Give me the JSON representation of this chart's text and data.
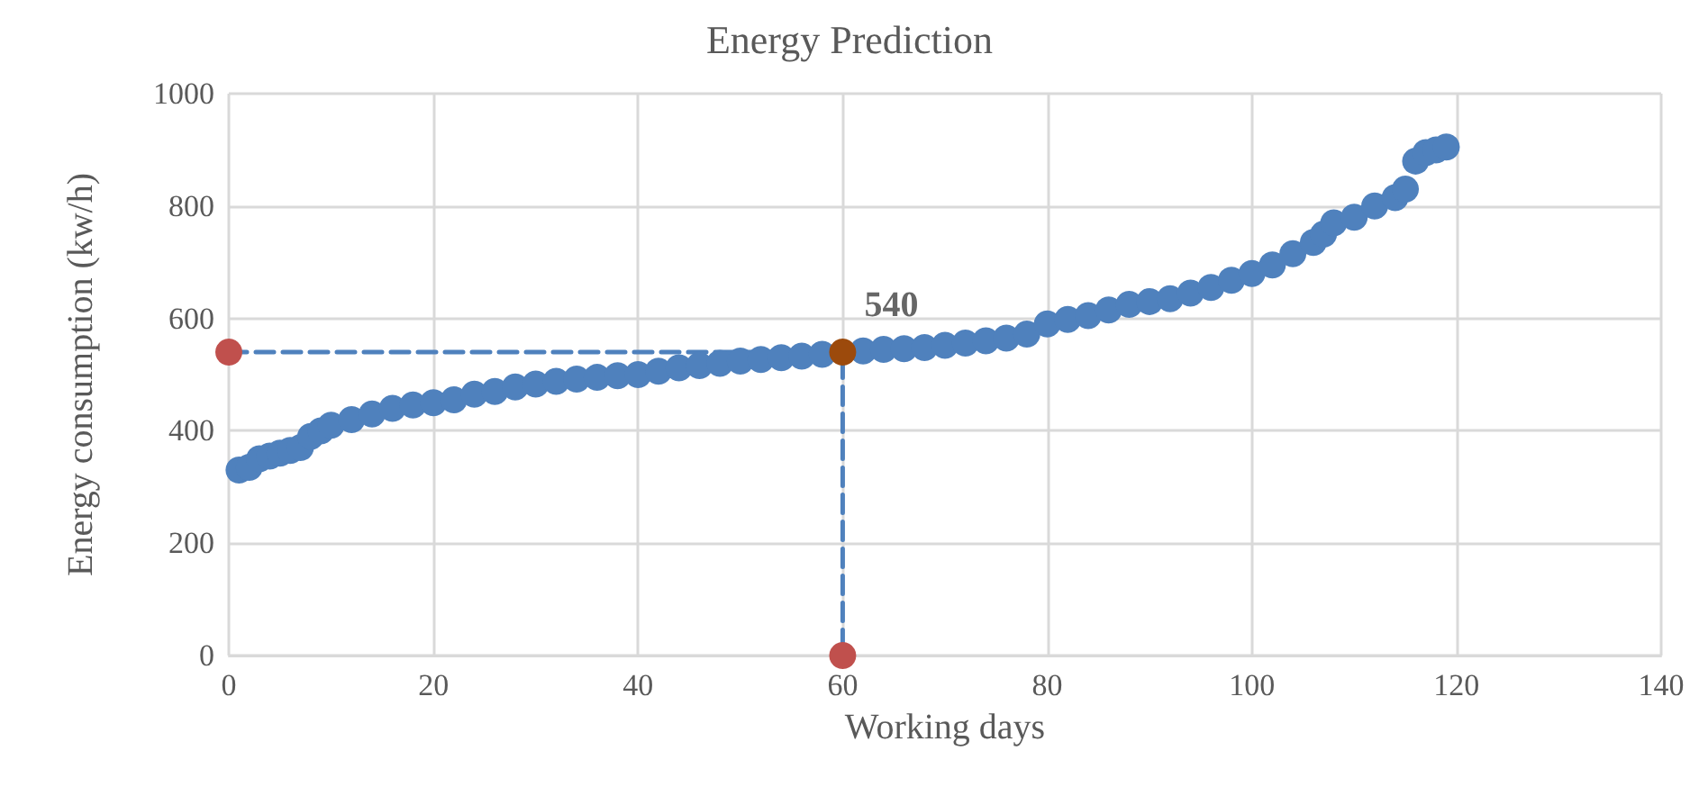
{
  "chart_data": {
    "type": "scatter",
    "title": "Energy Prediction",
    "xlabel": "Working days",
    "ylabel": "Energy consumption (kw/h)",
    "xlim": [
      0,
      140
    ],
    "xticks": [
      0,
      20,
      40,
      60,
      80,
      100,
      120,
      140
    ],
    "ylim": [
      0,
      1000
    ],
    "yticks": [
      0,
      200,
      400,
      600,
      800,
      1000
    ],
    "grid": true,
    "annotations": [
      {
        "text": "540",
        "x": 60,
        "y": 540
      }
    ],
    "series": [
      {
        "type": "line",
        "color": "#4f81bd",
        "line_style": "dashed",
        "marker": "none",
        "x": [
          0,
          60,
          60
        ],
        "values": [
          540,
          540,
          0
        ]
      },
      {
        "color": "#4f81bd",
        "marker": "circle",
        "x": [
          1,
          2,
          3,
          4,
          5,
          6,
          7,
          8,
          9,
          10,
          12,
          14,
          16,
          18,
          20,
          22,
          24,
          26,
          28,
          30,
          32,
          34,
          36,
          38,
          40,
          42,
          44,
          46,
          48,
          50,
          52,
          54,
          56,
          58,
          62,
          64,
          66,
          68,
          70,
          72,
          74,
          76,
          78,
          80,
          82,
          84,
          86,
          88,
          90,
          92,
          94,
          96,
          98,
          100,
          102,
          104,
          106,
          107,
          108,
          110,
          112,
          114,
          115,
          116,
          117,
          118,
          119
        ],
        "values": [
          330,
          335,
          350,
          355,
          360,
          365,
          370,
          390,
          400,
          410,
          420,
          430,
          440,
          446,
          450,
          455,
          465,
          470,
          478,
          483,
          488,
          492,
          495,
          498,
          500,
          506,
          512,
          516,
          520,
          524,
          527,
          530,
          533,
          536,
          542,
          545,
          546,
          548,
          552,
          556,
          560,
          565,
          572,
          590,
          598,
          605,
          615,
          625,
          630,
          635,
          645,
          655,
          668,
          680,
          695,
          715,
          735,
          750,
          770,
          780,
          800,
          815,
          830,
          880,
          895,
          900,
          905
        ]
      },
      {
        "color": "#c0504d",
        "marker": "circle",
        "x": [
          0,
          60
        ],
        "values": [
          540,
          0
        ]
      },
      {
        "color": "#9c4a0c",
        "marker": "circle",
        "x": [
          60
        ],
        "values": [
          540
        ]
      }
    ]
  }
}
